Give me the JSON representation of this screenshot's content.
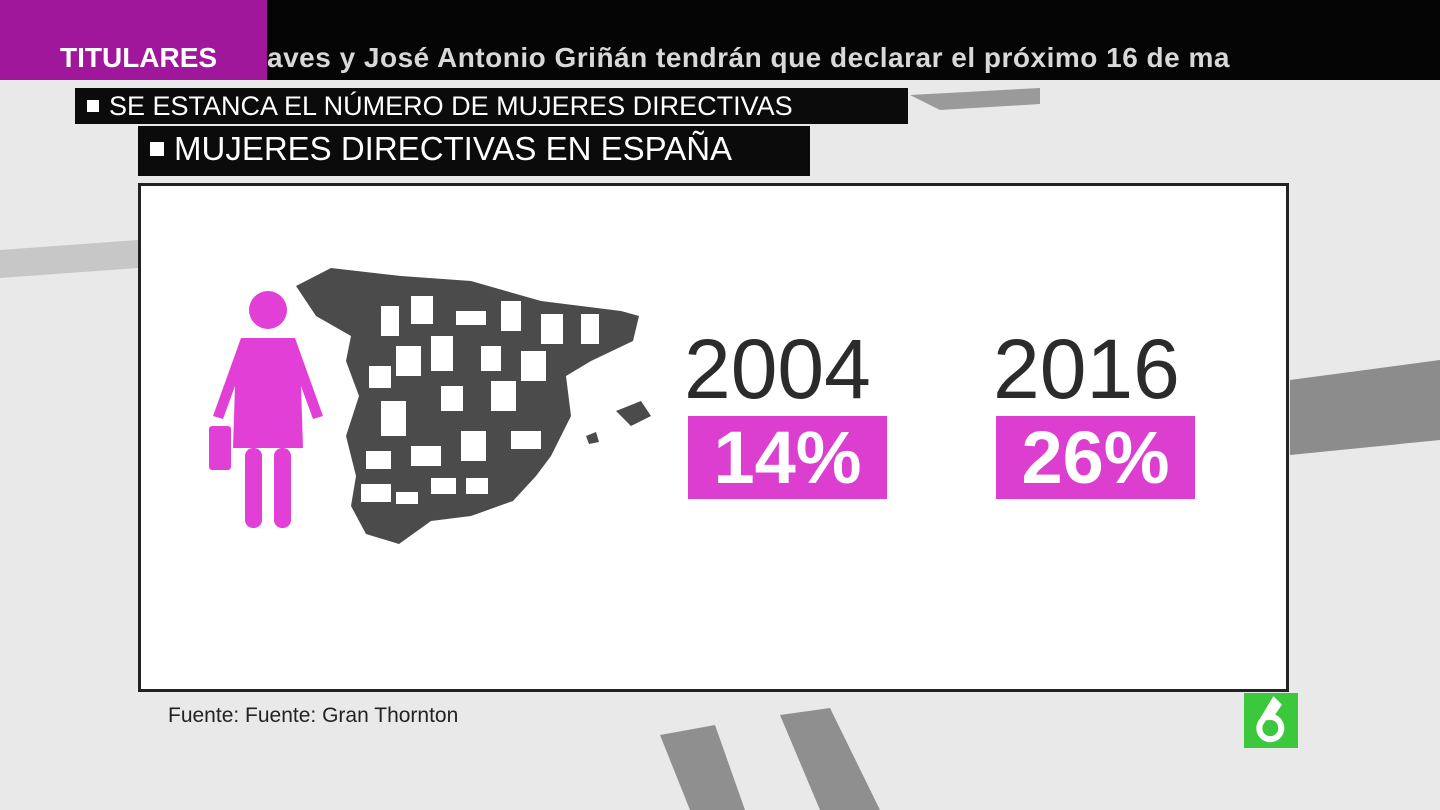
{
  "ticker": {
    "label": "TITULARES",
    "text": "aves y José Antonio Griñán tendrán que declarar el próximo 16 de ma"
  },
  "headline": "SE ESTANCA EL NÚMERO DE MUJERES DIRECTIVAS",
  "subheadline": "MUJERES DIRECTIVAS EN ESPAÑA",
  "stats": [
    {
      "year": "2004",
      "value": "14%"
    },
    {
      "year": "2016",
      "value": "26%"
    }
  ],
  "source": "Fuente: Fuente: Gran Thornton"
}
